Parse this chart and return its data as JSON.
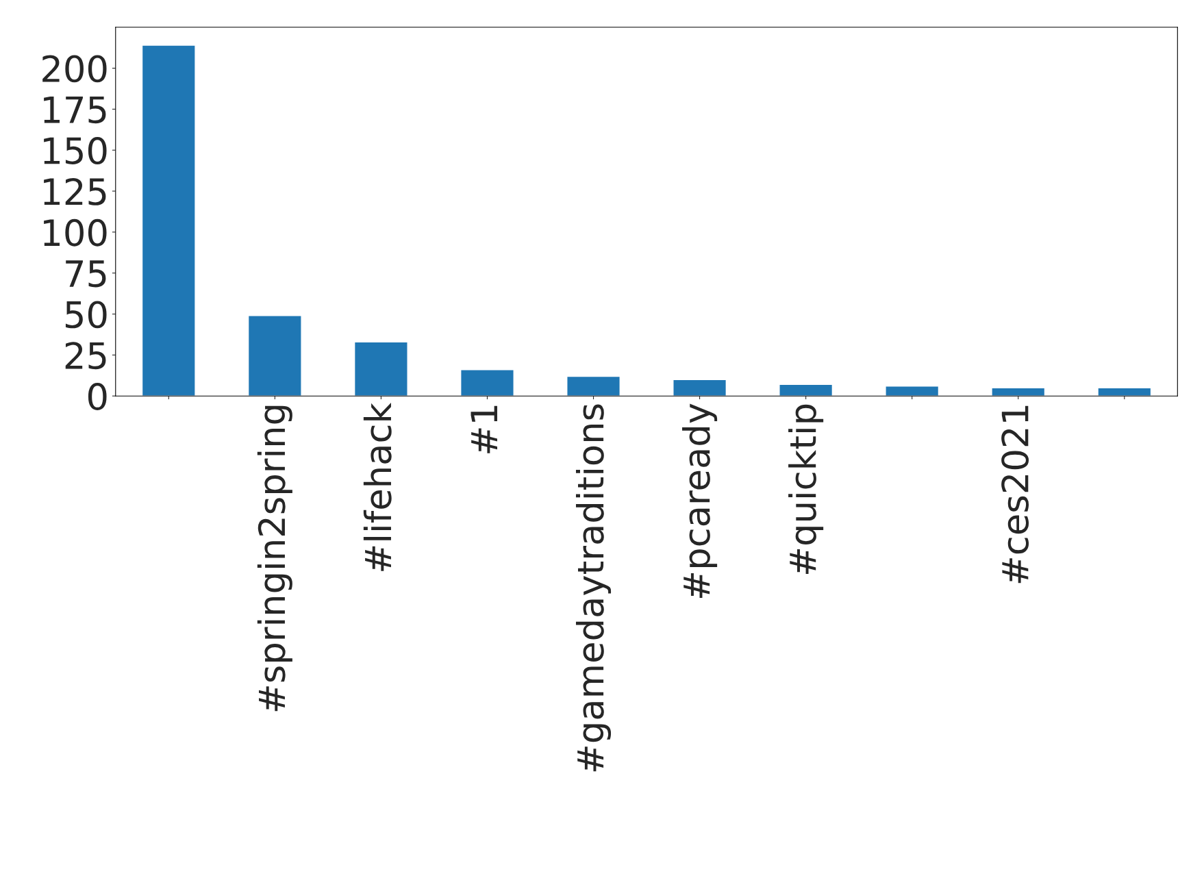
{
  "chart_data": {
    "type": "bar",
    "categories": [
      null,
      "#springin2spring",
      "#lifehack",
      "#1",
      "#gamedaytraditions",
      "#pcaready",
      "#quicktip",
      null,
      "#ces2021",
      null
    ],
    "values": [
      214,
      49,
      33,
      16,
      12,
      10,
      7,
      6,
      5,
      5
    ],
    "color": "#1f77b4",
    "ylim": [
      0,
      225
    ],
    "yticks": [
      0,
      25,
      50,
      75,
      100,
      125,
      150,
      175,
      200
    ],
    "grid": false,
    "legend": false
  }
}
